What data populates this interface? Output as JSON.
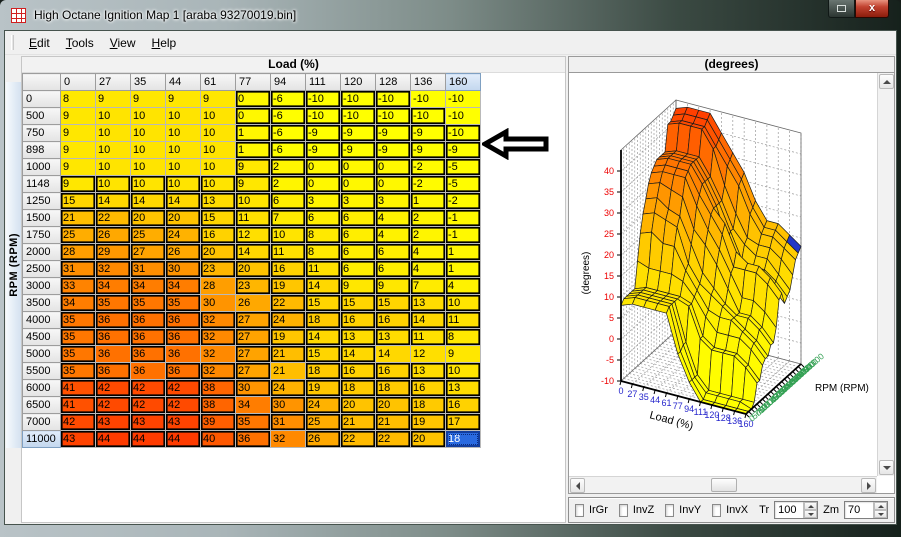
{
  "window": {
    "title": "High Octane Ignition Map 1 [araba 93270019.bin]",
    "close_label": "x"
  },
  "menu": {
    "items": [
      {
        "label": "Edit"
      },
      {
        "label": "Tools"
      },
      {
        "label": "View"
      },
      {
        "label": "Help"
      }
    ]
  },
  "map_table": {
    "x_axis_title": "Load (%)",
    "y_axis_title": "RPM (RPM)",
    "selected": {
      "row_index": 20,
      "col_index": 11,
      "value": 18
    },
    "outlined": [
      [
        0,
        0,
        0,
        0,
        0,
        1,
        1,
        1,
        1,
        1,
        0,
        0
      ],
      [
        0,
        0,
        0,
        0,
        0,
        1,
        1,
        1,
        1,
        1,
        1,
        0
      ],
      [
        0,
        0,
        0,
        0,
        0,
        1,
        1,
        1,
        1,
        1,
        1,
        1
      ],
      [
        0,
        0,
        0,
        0,
        0,
        1,
        1,
        1,
        1,
        1,
        1,
        1
      ],
      [
        0,
        0,
        0,
        0,
        0,
        1,
        1,
        1,
        1,
        1,
        1,
        1
      ],
      [
        1,
        1,
        1,
        1,
        1,
        1,
        1,
        1,
        1,
        1,
        1,
        1
      ],
      [
        1,
        1,
        1,
        1,
        1,
        1,
        1,
        1,
        1,
        1,
        1,
        1
      ],
      [
        1,
        1,
        1,
        1,
        1,
        1,
        1,
        1,
        1,
        1,
        1,
        1
      ],
      [
        1,
        1,
        1,
        1,
        1,
        1,
        1,
        1,
        1,
        1,
        1,
        1
      ],
      [
        1,
        1,
        1,
        1,
        1,
        1,
        1,
        1,
        1,
        1,
        1,
        1
      ],
      [
        1,
        1,
        1,
        1,
        1,
        1,
        1,
        1,
        1,
        1,
        1,
        1
      ],
      [
        1,
        1,
        1,
        1,
        0,
        1,
        1,
        1,
        1,
        1,
        1,
        1
      ],
      [
        1,
        1,
        1,
        1,
        0,
        0,
        1,
        1,
        1,
        1,
        1,
        1
      ],
      [
        1,
        1,
        1,
        1,
        1,
        1,
        1,
        1,
        1,
        1,
        1,
        1
      ],
      [
        1,
        1,
        1,
        1,
        1,
        1,
        1,
        1,
        1,
        1,
        1,
        1
      ],
      [
        1,
        0,
        1,
        0,
        0,
        1,
        1,
        1,
        1,
        0,
        0,
        0
      ],
      [
        1,
        1,
        0,
        1,
        1,
        1,
        0,
        1,
        1,
        1,
        1,
        1
      ],
      [
        1,
        1,
        1,
        1,
        1,
        1,
        1,
        1,
        1,
        1,
        1,
        1
      ],
      [
        1,
        1,
        1,
        1,
        1,
        0,
        1,
        1,
        1,
        1,
        1,
        1
      ],
      [
        1,
        1,
        1,
        1,
        1,
        1,
        1,
        1,
        1,
        1,
        1,
        1
      ],
      [
        1,
        1,
        1,
        1,
        1,
        1,
        0,
        1,
        1,
        1,
        1,
        0
      ]
    ]
  },
  "chart_data": {
    "type": "surface",
    "title": "(degrees)",
    "xlabel": "Load (%)",
    "ylabel": "RPM (RPM)",
    "zlabel": "(degrees)",
    "x_categories": [
      "0",
      "27",
      "35",
      "44",
      "61",
      "77",
      "94",
      "111",
      "120",
      "128",
      "136",
      "160"
    ],
    "y_categories": [
      "0",
      "500",
      "750",
      "898",
      "1000",
      "1148",
      "1250",
      "1500",
      "1750",
      "2000",
      "2500",
      "3000",
      "3500",
      "4000",
      "4500",
      "5000",
      "5500",
      "6000",
      "6500",
      "7000",
      "11000"
    ],
    "values": [
      [
        8,
        9,
        9,
        9,
        9,
        0,
        -6,
        -10,
        -10,
        -10,
        -10,
        -10
      ],
      [
        9,
        10,
        10,
        10,
        10,
        0,
        -6,
        -10,
        -10,
        -10,
        -10,
        -10
      ],
      [
        9,
        10,
        10,
        10,
        10,
        1,
        -6,
        -9,
        -9,
        -9,
        -9,
        -10
      ],
      [
        9,
        10,
        10,
        10,
        10,
        1,
        -6,
        -9,
        -9,
        -9,
        -9,
        -9
      ],
      [
        9,
        10,
        10,
        10,
        10,
        9,
        2,
        0,
        0,
        0,
        -2,
        -5
      ],
      [
        9,
        10,
        10,
        10,
        10,
        9,
        2,
        0,
        0,
        0,
        -2,
        -5
      ],
      [
        15,
        14,
        14,
        14,
        13,
        10,
        6,
        3,
        3,
        3,
        1,
        -2
      ],
      [
        21,
        22,
        20,
        20,
        15,
        11,
        7,
        6,
        6,
        4,
        2,
        -1
      ],
      [
        25,
        26,
        25,
        24,
        16,
        12,
        10,
        8,
        6,
        4,
        2,
        -1
      ],
      [
        28,
        29,
        27,
        26,
        20,
        14,
        11,
        8,
        6,
        6,
        4,
        1
      ],
      [
        31,
        32,
        31,
        30,
        23,
        20,
        16,
        11,
        6,
        6,
        4,
        1
      ],
      [
        33,
        34,
        34,
        34,
        28,
        23,
        19,
        14,
        9,
        9,
        7,
        4
      ],
      [
        34,
        35,
        35,
        35,
        30,
        26,
        22,
        15,
        15,
        15,
        13,
        10
      ],
      [
        35,
        36,
        36,
        36,
        32,
        27,
        24,
        18,
        16,
        16,
        14,
        11
      ],
      [
        35,
        36,
        36,
        36,
        32,
        27,
        19,
        14,
        13,
        13,
        11,
        8
      ],
      [
        35,
        36,
        36,
        36,
        32,
        27,
        21,
        15,
        14,
        14,
        12,
        9
      ],
      [
        35,
        36,
        36,
        36,
        32,
        27,
        21,
        18,
        16,
        16,
        13,
        10
      ],
      [
        41,
        42,
        42,
        42,
        38,
        30,
        24,
        19,
        18,
        18,
        16,
        13
      ],
      [
        41,
        42,
        42,
        42,
        38,
        34,
        30,
        24,
        20,
        20,
        18,
        16
      ],
      [
        42,
        43,
        43,
        43,
        39,
        35,
        31,
        25,
        21,
        21,
        19,
        17
      ],
      [
        43,
        44,
        44,
        44,
        40,
        36,
        32,
        26,
        22,
        22,
        20,
        18
      ]
    ],
    "zlim": [
      -10,
      45
    ],
    "z_ticks": [
      -10,
      -5,
      0,
      5,
      10,
      15,
      20,
      25,
      30,
      35,
      40
    ],
    "tick_colors": {
      "x": "#2626cc",
      "y": "#2e9e4f",
      "z": "#ee0000"
    }
  },
  "controls": {
    "checkboxes": [
      {
        "label": "IrGr",
        "checked": false
      },
      {
        "label": "InvZ",
        "checked": false
      },
      {
        "label": "InvY",
        "checked": false
      },
      {
        "label": "InvX",
        "checked": false
      }
    ],
    "spinners": [
      {
        "label": "Tr",
        "value": "100"
      },
      {
        "label": "Zm",
        "value": "70"
      }
    ]
  },
  "colors": {
    "selected_cell_bg": "#2a6ae0",
    "selected_quad": "#2438c8",
    "heat_low": "#ffff00",
    "heat_high": "#ff3b00"
  }
}
